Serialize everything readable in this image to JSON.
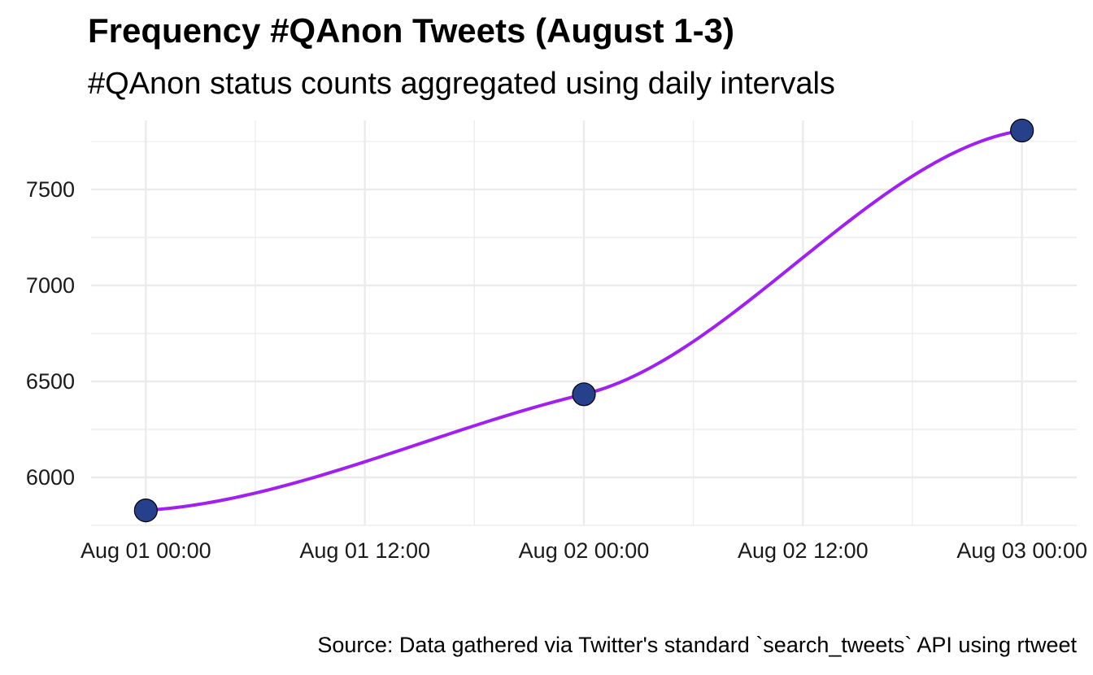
{
  "chart_data": {
    "type": "line",
    "title": "Frequency #QAnon Tweets (August 1-3)",
    "subtitle": "#QAnon status counts aggregated using daily intervals",
    "caption": "Source: Data gathered via Twitter's standard `search_tweets` API using rtweet",
    "xlabel": "",
    "ylabel": "",
    "x_ticks": [
      "Aug 01 00:00",
      "Aug 01 12:00",
      "Aug 02 00:00",
      "Aug 02 12:00",
      "Aug 03 00:00"
    ],
    "y_ticks": [
      6000,
      6500,
      7000,
      7500
    ],
    "xlim_hours": [
      -3,
      51
    ],
    "ylim": [
      5750,
      7860
    ],
    "grid": true,
    "series": [
      {
        "x": [
          "Aug 01 00:00",
          "Aug 02 00:00",
          "Aug 03 00:00"
        ],
        "x_hours": [
          0,
          24,
          48
        ],
        "values": [
          5828,
          6433,
          7807
        ]
      }
    ],
    "colors": {
      "line": "#a020f0",
      "point_fill": "#27408b",
      "point_stroke": "#000000",
      "grid": "#ebebeb"
    }
  }
}
